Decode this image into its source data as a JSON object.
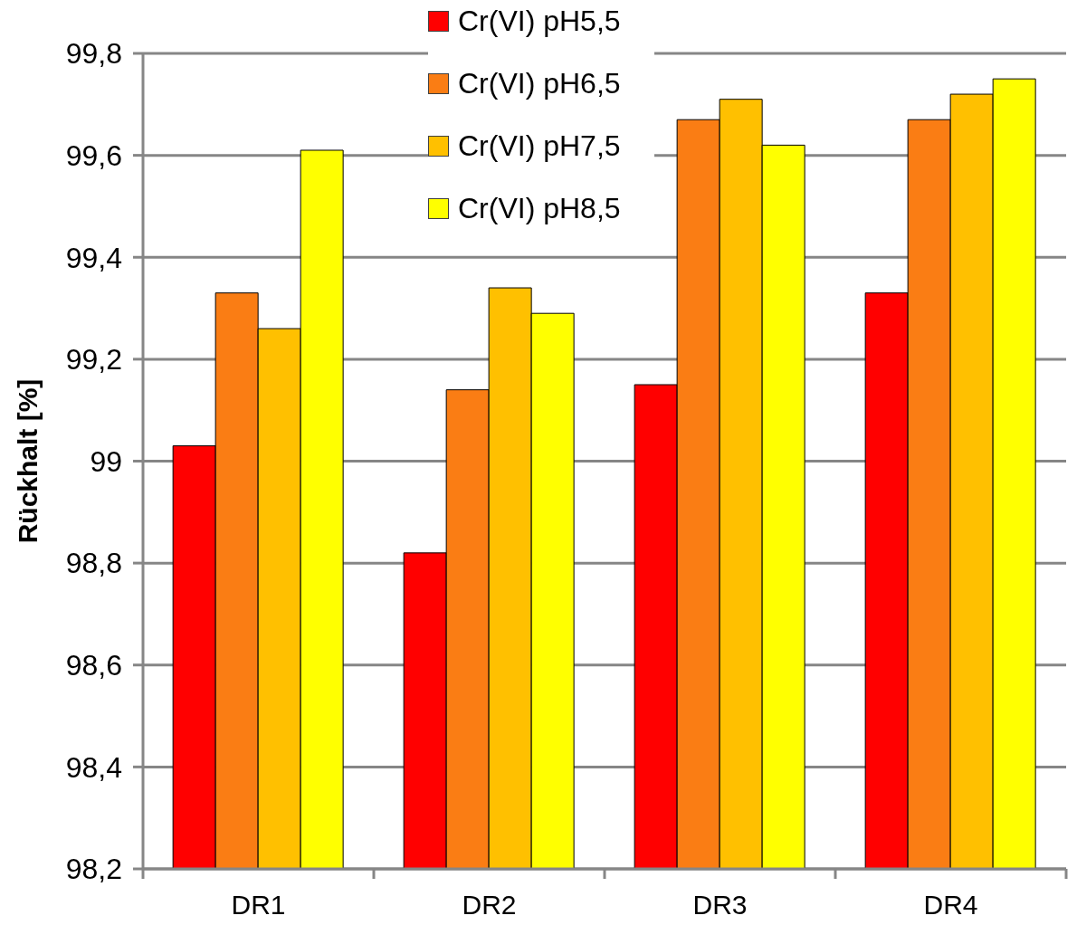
{
  "chart_data": {
    "type": "bar",
    "ylabel": "Rückhalt [%]",
    "categories": [
      "DR1",
      "DR2",
      "DR3",
      "DR4"
    ],
    "series": [
      {
        "name": "Cr(VI) pH5,5",
        "color": "#ff0000",
        "values": [
          99.03,
          98.82,
          99.15,
          99.33
        ]
      },
      {
        "name": "Cr(VI) pH6,5",
        "color": "#fa7d14",
        "values": [
          99.33,
          99.14,
          99.67,
          99.67
        ]
      },
      {
        "name": "Cr(VI) pH7,5",
        "color": "#ffc000",
        "values": [
          99.26,
          99.34,
          99.71,
          99.72
        ]
      },
      {
        "name": "Cr(VI) pH8,5",
        "color": "#ffff00",
        "values": [
          99.61,
          99.29,
          99.62,
          99.75
        ]
      }
    ],
    "ylim": [
      98.2,
      99.8
    ],
    "yticks": [
      {
        "value": 98.2,
        "label": "98,2"
      },
      {
        "value": 98.4,
        "label": "98,4"
      },
      {
        "value": 98.6,
        "label": "98,6"
      },
      {
        "value": 98.8,
        "label": "98,8"
      },
      99,
      {
        "value": 99.2,
        "label": "99,2"
      },
      {
        "value": 99.4,
        "label": "99,4"
      },
      {
        "value": 99.6,
        "label": "99,6"
      },
      {
        "value": 99.8,
        "label": "99,8"
      }
    ],
    "grid": "y",
    "legend": "top"
  }
}
